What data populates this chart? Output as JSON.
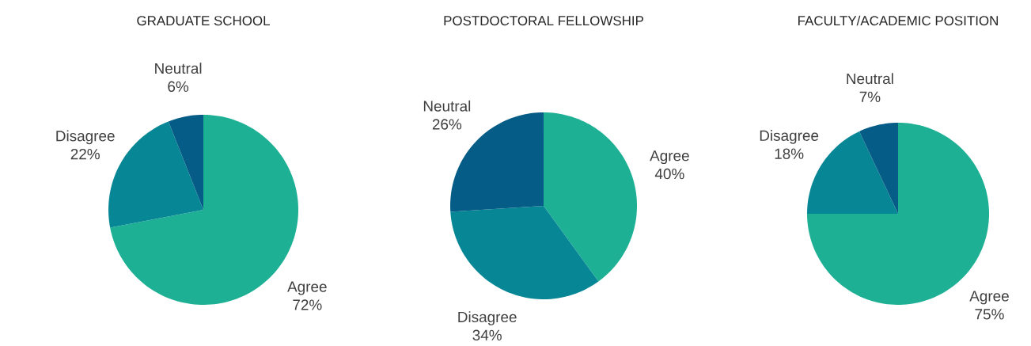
{
  "chart_data": [
    {
      "type": "pie",
      "title": "GRADUATE SCHOOL",
      "categories": [
        "Agree",
        "Disagree",
        "Neutral"
      ],
      "values": [
        72,
        22,
        6
      ],
      "value_labels": [
        "72%",
        "22%",
        "6%"
      ],
      "colors": [
        "#1eb094",
        "#078796",
        "#055c86"
      ]
    },
    {
      "type": "pie",
      "title": "POSTDOCTORAL FELLOWSHIP",
      "categories": [
        "Agree",
        "Disagree",
        "Neutral"
      ],
      "values": [
        40,
        34,
        26
      ],
      "value_labels": [
        "40%",
        "34%",
        "26%"
      ],
      "colors": [
        "#1eb094",
        "#078796",
        "#055c86"
      ]
    },
    {
      "type": "pie",
      "title": "FACULTY/ACADEMIC POSITION",
      "categories": [
        "Agree",
        "Disagree",
        "Neutral"
      ],
      "values": [
        75,
        18,
        7
      ],
      "value_labels": [
        "75%",
        "18%",
        "7%"
      ],
      "colors": [
        "#1eb094",
        "#078796",
        "#055c86"
      ]
    }
  ]
}
